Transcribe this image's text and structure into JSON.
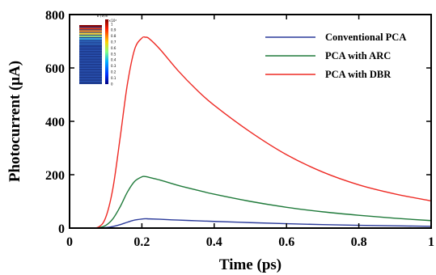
{
  "chart_data": {
    "type": "line",
    "xlabel": "Time (ps)",
    "ylabel": "Photocurrent (μA)",
    "xlim": [
      0,
      1
    ],
    "ylim": [
      0,
      800
    ],
    "xticks": [
      0,
      0.2,
      0.4,
      0.6,
      0.8,
      1
    ],
    "xtick_labels": [
      "0",
      "0.2",
      "0.4",
      "0.6",
      "0.8",
      "1"
    ],
    "yticks": [
      0,
      200,
      400,
      600,
      800
    ],
    "ytick_labels": [
      "0",
      "200",
      "400",
      "600",
      "800"
    ],
    "grid": false,
    "legend_position": "top-right",
    "x": [
      0,
      0.05,
      0.08,
      0.1,
      0.12,
      0.14,
      0.16,
      0.18,
      0.2,
      0.21,
      0.22,
      0.25,
      0.3,
      0.35,
      0.4,
      0.5,
      0.6,
      0.7,
      0.8,
      0.9,
      1.0
    ],
    "series": [
      {
        "name": "Conventional PCA",
        "color": "#2a3a9a",
        "values": [
          0,
          0,
          0.3,
          2,
          6,
          13,
          22,
          30,
          34,
          35,
          34.5,
          33,
          30,
          27.5,
          25,
          20.5,
          16.5,
          13,
          10.5,
          8.5,
          6.5
        ]
      },
      {
        "name": "PCA with ARC",
        "color": "#1f7a3a",
        "values": [
          0,
          0,
          1.5,
          10,
          35,
          80,
          135,
          175,
          192,
          193,
          190,
          180,
          160,
          143,
          127,
          100,
          78,
          61,
          48,
          37,
          28
        ]
      },
      {
        "name": "PCA with DBR",
        "color": "#ee2a24",
        "values": [
          0,
          0,
          4,
          40,
          150,
          340,
          540,
          670,
          712,
          715,
          710,
          670,
          590,
          520,
          460,
          360,
          275,
          210,
          162,
          128,
          102
        ]
      }
    ],
    "inset": {
      "label": "E (V/m",
      "exponent": "×10⁴",
      "colorbar_ticks": [
        "1",
        "0.9",
        "0.8",
        "0.7",
        "0.6",
        "0.5",
        "0.4",
        "0.3",
        "0.2",
        "0.1",
        "0"
      ]
    }
  }
}
